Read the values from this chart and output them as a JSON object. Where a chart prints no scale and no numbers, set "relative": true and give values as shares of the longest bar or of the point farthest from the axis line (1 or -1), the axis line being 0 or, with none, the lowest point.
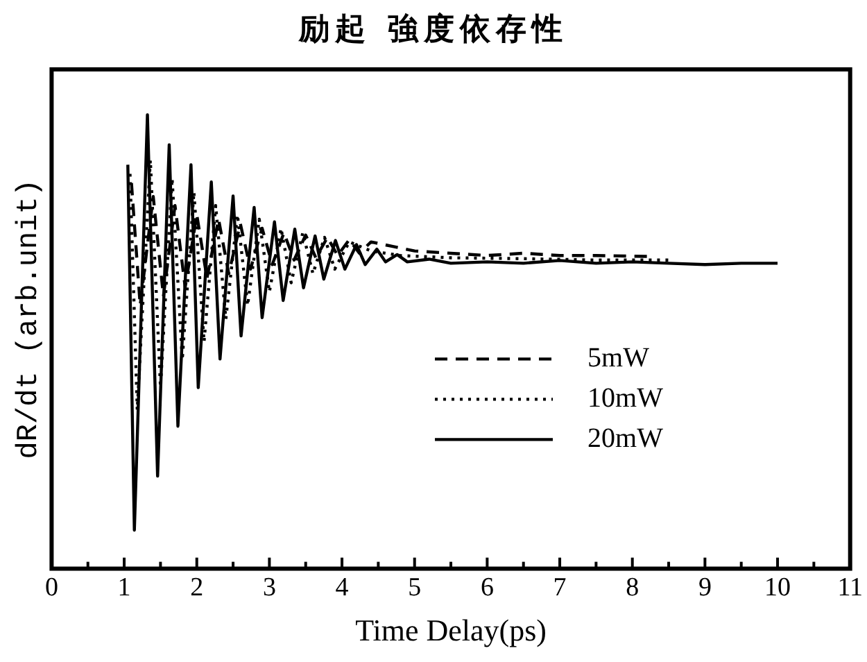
{
  "chart_data": {
    "type": "line",
    "title": "励起 強度依存性",
    "xlabel": "Time Delay(ps)",
    "ylabel": "dR/dt (arb.unit)",
    "relative": true,
    "legend": "right",
    "grid": false,
    "marker": "none",
    "xlim": [
      0,
      11
    ],
    "xticks": [
      0,
      {
        "value": 0.5,
        "label": null
      },
      1,
      {
        "value": 1.5,
        "label": null
      },
      2,
      {
        "value": 2.5,
        "label": null
      },
      3,
      {
        "value": 3.5,
        "label": null
      },
      4,
      {
        "value": 4.5,
        "label": null
      },
      5,
      {
        "value": 5.5,
        "label": null
      },
      6,
      {
        "value": 6.5,
        "label": null
      },
      7,
      {
        "value": 7.5,
        "label": null
      },
      8,
      {
        "value": 8.5,
        "label": null
      },
      9,
      {
        "value": 9.5,
        "label": null
      },
      10,
      {
        "value": 10.5,
        "label": null
      },
      11
    ],
    "series": [
      {
        "name": "5mW",
        "color": "#000000",
        "line_style": "dashed",
        "x": [
          1.1,
          1.22,
          1.4,
          1.54,
          1.7,
          1.84,
          2.0,
          2.14,
          2.3,
          2.44,
          2.6,
          2.74,
          2.9,
          3.04,
          3.2,
          3.34,
          3.5,
          3.64,
          3.8,
          3.94,
          4.1,
          4.24,
          4.4,
          4.7,
          5.0,
          5.5,
          6.0,
          6.5,
          7.0,
          7.5,
          8.2
        ],
        "values": [
          0.85,
          0.58,
          0.82,
          0.6,
          0.8,
          0.62,
          0.78,
          0.64,
          0.77,
          0.65,
          0.76,
          0.66,
          0.75,
          0.67,
          0.74,
          0.68,
          0.735,
          0.685,
          0.73,
          0.69,
          0.725,
          0.695,
          0.72,
          0.71,
          0.7,
          0.695,
          0.69,
          0.695,
          0.69,
          0.69,
          0.688
        ]
      },
      {
        "name": "10mW",
        "color": "#000000",
        "line_style": "dotted",
        "x": [
          1.08,
          1.18,
          1.36,
          1.5,
          1.66,
          1.8,
          1.96,
          2.1,
          2.26,
          2.4,
          2.56,
          2.7,
          2.86,
          3.0,
          3.16,
          3.3,
          3.46,
          3.6,
          3.76,
          3.9,
          4.1,
          4.4,
          4.8,
          5.5,
          6.5,
          7.5,
          8.5
        ],
        "values": [
          0.87,
          0.35,
          0.9,
          0.4,
          0.86,
          0.46,
          0.83,
          0.5,
          0.8,
          0.55,
          0.78,
          0.58,
          0.77,
          0.61,
          0.75,
          0.63,
          0.74,
          0.65,
          0.73,
          0.66,
          0.72,
          0.7,
          0.69,
          0.685,
          0.683,
          0.68,
          0.68
        ]
      },
      {
        "name": "20mW",
        "color": "#000000",
        "line_style": "solid",
        "x": [
          1.05,
          1.14,
          1.32,
          1.46,
          1.62,
          1.74,
          1.92,
          2.02,
          2.2,
          2.32,
          2.5,
          2.61,
          2.79,
          2.9,
          3.07,
          3.19,
          3.35,
          3.47,
          3.63,
          3.75,
          3.91,
          4.04,
          4.2,
          4.32,
          4.48,
          4.6,
          4.76,
          4.9,
          5.2,
          5.5,
          6.0,
          6.5,
          7.0,
          7.5,
          8.0,
          8.5,
          9.0,
          9.5,
          10.0
        ],
        "values": [
          0.89,
          0.085,
          1.0,
          0.204,
          0.934,
          0.314,
          0.89,
          0.399,
          0.852,
          0.462,
          0.821,
          0.513,
          0.796,
          0.553,
          0.764,
          0.591,
          0.748,
          0.619,
          0.733,
          0.638,
          0.723,
          0.66,
          0.714,
          0.67,
          0.704,
          0.676,
          0.692,
          0.676,
          0.682,
          0.673,
          0.676,
          0.673,
          0.679,
          0.673,
          0.676,
          0.673,
          0.67,
          0.673,
          0.673
        ]
      }
    ]
  }
}
